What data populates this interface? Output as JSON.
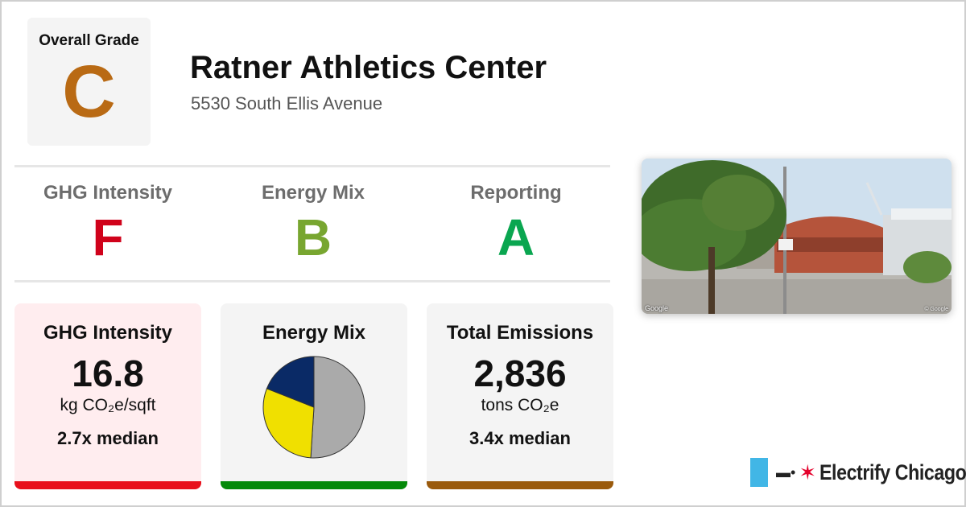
{
  "building": {
    "name": "Ratner Athletics Center",
    "address": "5530 South Ellis Avenue"
  },
  "overall": {
    "label": "Overall Grade",
    "grade": "C",
    "color": "#b96a14"
  },
  "grades": [
    {
      "label": "GHG Intensity",
      "grade": "F",
      "color": "#d0021b"
    },
    {
      "label": "Energy Mix",
      "grade": "B",
      "color": "#78a630"
    },
    {
      "label": "Reporting",
      "grade": "A",
      "color": "#0aa650"
    }
  ],
  "cards": {
    "ghg": {
      "title": "GHG Intensity",
      "value": "16.8",
      "unit": "kg CO₂e/sqft",
      "median": "2.7x median",
      "bg": "#ffedef",
      "bar": "#e8101c"
    },
    "mix": {
      "title": "Energy Mix",
      "bg": "#f4f4f4",
      "bar": "#058a0a"
    },
    "emissions": {
      "title": "Total Emissions",
      "value": "2,836",
      "unit": "tons CO₂e",
      "median": "3.4x median",
      "bg": "#f4f4f4",
      "bar": "#9a5a0c"
    }
  },
  "chart_data": {
    "type": "pie",
    "values": [
      51,
      30,
      19
    ],
    "colors": [
      "#aaaaaa",
      "#f0e000",
      "#0a2a66"
    ]
  },
  "photo": {
    "credit_left": "Google",
    "credit_right": "© Google"
  },
  "brand": {
    "name": "Electrify Chicago",
    "flag_color": "#41b6e6",
    "star_color": "#e4002b"
  }
}
